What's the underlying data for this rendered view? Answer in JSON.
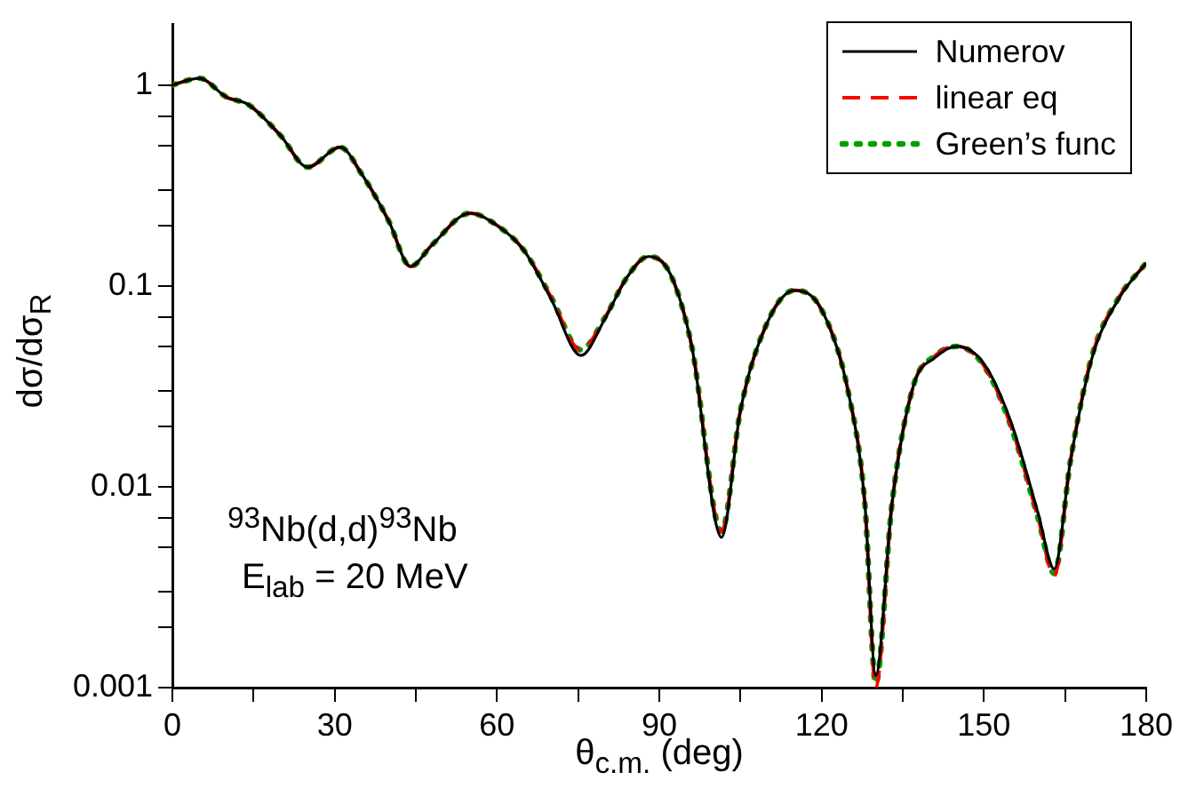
{
  "chart_data": {
    "type": "line",
    "xlabel": "θ$_{c.m.}$ (deg)",
    "ylabel": "dσ/dσ$_{R}$",
    "log": "y",
    "legend": "top right",
    "grid": false,
    "marker": "none",
    "xlim": [
      0,
      180
    ],
    "xticks": [
      0,
      {
        "value": 15,
        "label": null
      },
      30,
      {
        "value": 45,
        "label": null
      },
      60,
      {
        "value": 75,
        "label": null
      },
      90,
      {
        "value": 105,
        "label": null
      },
      120,
      {
        "value": 135,
        "label": null
      },
      150,
      {
        "value": 165,
        "label": null
      },
      180
    ],
    "ylim": [
      0.001,
      2
    ],
    "yticks": [
      0.001,
      {
        "value": 0.002,
        "label": null
      },
      {
        "value": 0.003,
        "label": null
      },
      {
        "value": 0.005,
        "label": null
      },
      {
        "value": 0.007,
        "label": null
      },
      0.01,
      {
        "value": 0.02,
        "label": null
      },
      {
        "value": 0.03,
        "label": null
      },
      {
        "value": 0.05,
        "label": null
      },
      {
        "value": 0.07,
        "label": null
      },
      0.1,
      {
        "value": 0.2,
        "label": null
      },
      {
        "value": 0.3,
        "label": null
      },
      {
        "value": 0.5,
        "label": null
      },
      {
        "value": 0.7,
        "label": null
      },
      1
    ],
    "x": [
      0,
      5,
      10,
      14,
      20,
      25,
      31,
      35,
      40,
      44,
      48,
      55,
      60,
      65,
      70,
      75.5,
      80,
      84,
      88,
      92,
      96,
      101.5,
      105,
      110,
      115,
      120,
      125,
      128,
      130,
      133,
      137,
      141,
      145,
      150,
      155,
      160,
      163,
      166,
      170,
      175,
      180
    ],
    "annotations": [
      "$^{93}$Nb(d,d)$^{93}$Nb",
      "E$_{lab}$ = 20 MeV"
    ],
    "series": [
      {
        "name": "Numerov",
        "color": "#000000",
        "line_style": "solid",
        "values": [
          1.0,
          1.08,
          0.87,
          0.8,
          0.56,
          0.39,
          0.49,
          0.36,
          0.21,
          0.125,
          0.16,
          0.23,
          0.2,
          0.15,
          0.086,
          0.045,
          0.069,
          0.11,
          0.14,
          0.115,
          0.05,
          0.0056,
          0.024,
          0.066,
          0.095,
          0.076,
          0.029,
          0.0082,
          0.00115,
          0.0082,
          0.032,
          0.044,
          0.05,
          0.041,
          0.021,
          0.0074,
          0.0039,
          0.0135,
          0.044,
          0.087,
          0.13
        ]
      },
      {
        "name": "linear eq",
        "color": "#ff0000",
        "line_style": "dashed",
        "values": [
          1.0,
          1.08,
          0.87,
          0.8,
          0.56,
          0.39,
          0.49,
          0.36,
          0.21,
          0.125,
          0.16,
          0.23,
          0.2,
          0.15,
          0.088,
          0.048,
          0.07,
          0.11,
          0.14,
          0.115,
          0.05,
          0.006,
          0.024,
          0.066,
          0.095,
          0.076,
          0.029,
          0.0082,
          0.001,
          0.0082,
          0.032,
          0.045,
          0.05,
          0.04,
          0.02,
          0.007,
          0.0036,
          0.0135,
          0.045,
          0.088,
          0.13
        ]
      },
      {
        "name": "Green’s func",
        "color": "#00a000",
        "line_style": "dotted",
        "values": [
          1.0,
          1.08,
          0.87,
          0.8,
          0.56,
          0.39,
          0.49,
          0.36,
          0.21,
          0.125,
          0.16,
          0.23,
          0.2,
          0.15,
          0.088,
          0.048,
          0.07,
          0.11,
          0.14,
          0.115,
          0.05,
          0.006,
          0.024,
          0.066,
          0.095,
          0.076,
          0.029,
          0.0082,
          0.00105,
          0.0082,
          0.032,
          0.045,
          0.05,
          0.04,
          0.02,
          0.007,
          0.0037,
          0.0135,
          0.045,
          0.088,
          0.13
        ]
      }
    ]
  }
}
